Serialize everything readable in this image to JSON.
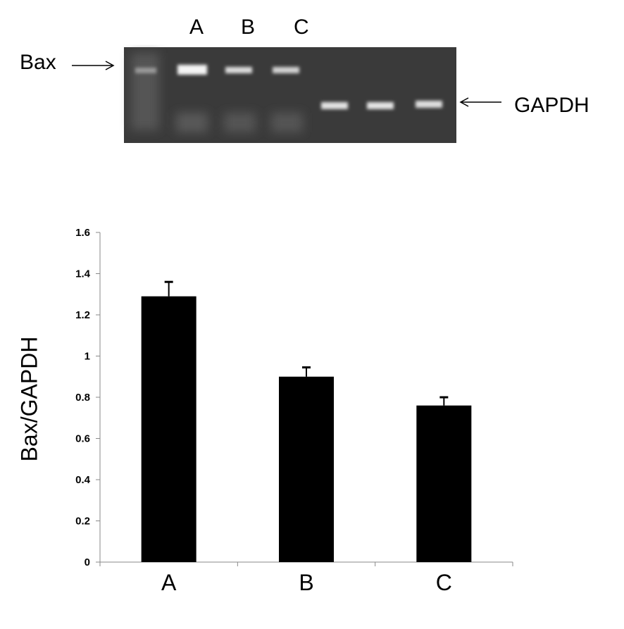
{
  "gel": {
    "lane_labels": [
      "A",
      "B",
      "C"
    ],
    "bax_label": "Bax",
    "gapdh_label": "GAPDH",
    "background_color": "#3a3a3a"
  },
  "chart_data": {
    "type": "bar",
    "categories": [
      "A",
      "B",
      "C"
    ],
    "values": [
      1.29,
      0.9,
      0.76
    ],
    "error_plus": [
      0.07,
      0.045,
      0.04
    ],
    "title": "",
    "xlabel": "",
    "ylabel": "Bax/GAPDH",
    "ylim": [
      0,
      1.6
    ],
    "yticks": [
      0,
      0.2,
      0.4,
      0.6,
      0.8,
      1,
      1.2,
      1.4,
      1.6
    ],
    "ytick_labels": [
      "0",
      "0.2",
      "0.4",
      "0.6",
      "0.8",
      "1",
      "1.2",
      "1.4",
      "1.6"
    ],
    "grid": false,
    "bar_color": "#000000"
  }
}
